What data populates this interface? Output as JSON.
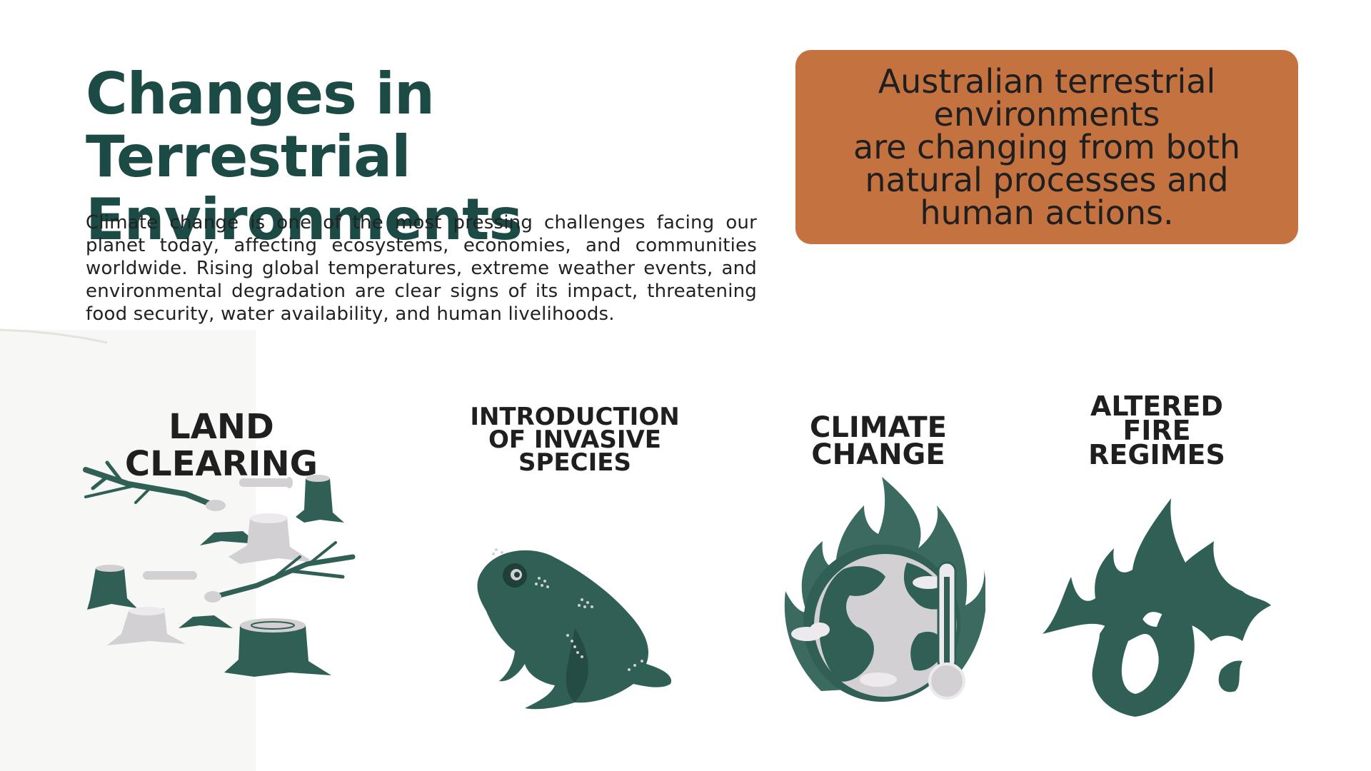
{
  "title_lines": [
    "Changes in Terrestrial",
    "Environments"
  ],
  "intro_text": "Climate change is one of the most pressing challenges facing our planet today, affecting ecosystems, economies, and communities worldwide. Rising global temperatures, extreme weather events, and environmental degradation are clear signs of its impact, threatening food security, water availability, and human livelihoods.",
  "callout_lines": [
    "Australian terrestrial",
    "environments",
    "are changing from both",
    "natural processes and",
    "human actions."
  ],
  "categories": [
    {
      "id": "land-clearing",
      "label_lines": [
        "LAND CLEARING"
      ],
      "icon": "tree-stumps-logs-icon"
    },
    {
      "id": "invasive-species",
      "label_lines": [
        "INTRODUCTION",
        "OF INVASIVE",
        "SPECIES"
      ],
      "icon": "cane-toad-icon"
    },
    {
      "id": "climate-change",
      "label_lines": [
        "CLIMATE",
        "CHANGE"
      ],
      "icon": "burning-globe-thermometer-icon"
    },
    {
      "id": "fire-regimes",
      "label_lines": [
        "ALTERED",
        "FIRE",
        "REGIMES"
      ],
      "icon": "flames-icon"
    }
  ],
  "colors": {
    "title": "#1c4a45",
    "callout_bg": "#c47240",
    "illustration_dark": "#2f5f55",
    "illustration_light": "#d3d0d3",
    "text": "#1f1f1f"
  }
}
